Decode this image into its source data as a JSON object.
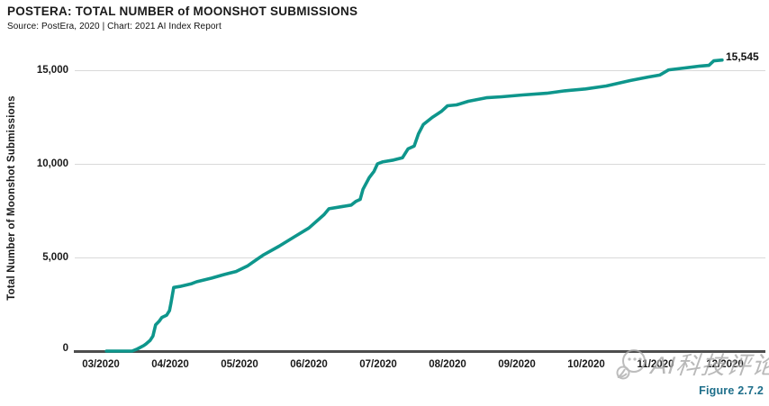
{
  "header": {
    "title": "POSTERA: TOTAL NUMBER of MOONSHOT SUBMISSIONS",
    "source": "Source: PostEra, 2020 | Chart: 2021 AI Index Report"
  },
  "chart_data": {
    "type": "line",
    "title": "POSTERA: TOTAL NUMBER of MOONSHOT SUBMISSIONS",
    "xlabel": "",
    "ylabel": "Total Number of Moonshot Submissions",
    "legend": "none",
    "grid": "horizontal-light-gray",
    "line_color": "#0e968c",
    "ylim": [
      0,
      16000
    ],
    "y_ticks": {
      "values": [
        0,
        5000,
        10000,
        15000
      ],
      "labels": [
        "0",
        "5,000",
        "10,000",
        "15,000"
      ]
    },
    "x_tick_labels": [
      "03/2020",
      "04/2020",
      "05/2020",
      "06/2020",
      "07/2020",
      "08/2020",
      "09/2020",
      "10/2020",
      "11/2020",
      "12/2020"
    ],
    "x_encoding": "months since the 03/2020 tick",
    "end_label": "15,545",
    "series": [
      {
        "name": "Total number of Moonshot submissions",
        "final_value": 15545,
        "points": [
          [
            0.08,
            0
          ],
          [
            0.45,
            0
          ],
          [
            0.53,
            120
          ],
          [
            0.62,
            300
          ],
          [
            0.65,
            380
          ],
          [
            0.71,
            570
          ],
          [
            0.75,
            800
          ],
          [
            0.79,
            1400
          ],
          [
            0.84,
            1590
          ],
          [
            0.88,
            1800
          ],
          [
            0.95,
            1920
          ],
          [
            0.99,
            2160
          ],
          [
            1.01,
            2550
          ],
          [
            1.05,
            3400
          ],
          [
            1.14,
            3450
          ],
          [
            1.31,
            3600
          ],
          [
            1.38,
            3700
          ],
          [
            1.6,
            3900
          ],
          [
            1.77,
            4080
          ],
          [
            1.95,
            4250
          ],
          [
            2.12,
            4560
          ],
          [
            2.25,
            4900
          ],
          [
            2.35,
            5150
          ],
          [
            2.57,
            5600
          ],
          [
            2.79,
            6100
          ],
          [
            3.0,
            6570
          ],
          [
            3.22,
            7290
          ],
          [
            3.29,
            7600
          ],
          [
            3.61,
            7800
          ],
          [
            3.68,
            8000
          ],
          [
            3.74,
            8100
          ],
          [
            3.78,
            8640
          ],
          [
            3.87,
            9260
          ],
          [
            3.94,
            9600
          ],
          [
            3.99,
            10000
          ],
          [
            4.06,
            10100
          ],
          [
            4.22,
            10200
          ],
          [
            4.35,
            10320
          ],
          [
            4.43,
            10800
          ],
          [
            4.52,
            10950
          ],
          [
            4.58,
            11600
          ],
          [
            4.65,
            12100
          ],
          [
            4.78,
            12480
          ],
          [
            4.91,
            12800
          ],
          [
            5.0,
            13100
          ],
          [
            5.13,
            13150
          ],
          [
            5.3,
            13340
          ],
          [
            5.56,
            13530
          ],
          [
            5.78,
            13580
          ],
          [
            6.08,
            13680
          ],
          [
            6.43,
            13770
          ],
          [
            6.69,
            13900
          ],
          [
            6.99,
            14000
          ],
          [
            7.29,
            14160
          ],
          [
            7.64,
            14450
          ],
          [
            7.9,
            14640
          ],
          [
            8.06,
            14740
          ],
          [
            8.19,
            15020
          ],
          [
            8.42,
            15120
          ],
          [
            8.64,
            15220
          ],
          [
            8.77,
            15260
          ],
          [
            8.84,
            15500
          ],
          [
            8.96,
            15545
          ]
        ]
      }
    ]
  },
  "footer": {
    "figure_label": "Figure 2.7.2"
  },
  "watermark": {
    "text": "AI科技评论",
    "icon": "speech-bubbles-logo"
  }
}
